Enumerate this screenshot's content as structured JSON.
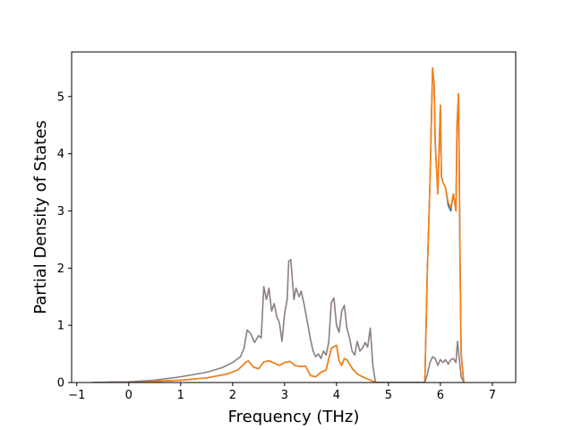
{
  "chart_data": {
    "type": "line",
    "title": "",
    "xlabel": "Frequency (THz)",
    "ylabel": "Partial Density of States",
    "xlim": [
      -1.1,
      7.45
    ],
    "ylim": [
      0,
      5.78
    ],
    "xticks": [
      -1,
      0,
      1,
      2,
      3,
      4,
      5,
      6,
      7
    ],
    "yticks": [
      0,
      1,
      2,
      3,
      4,
      5
    ],
    "grid": false,
    "legend": "none",
    "series": [
      {
        "color": "#1f77b4",
        "x": [
          -0.7,
          0.0,
          0.5,
          1.0,
          1.5,
          1.9,
          2.1,
          2.25,
          2.3,
          2.4,
          2.5,
          2.6,
          2.7,
          2.8,
          2.9,
          3.0,
          3.1,
          3.2,
          3.3,
          3.4,
          3.5,
          3.6,
          3.7,
          3.8,
          3.9,
          4.0,
          4.05,
          4.1,
          4.15,
          4.2,
          4.3,
          4.4,
          4.5,
          4.6,
          4.65,
          4.7,
          4.75,
          4.8,
          5.7,
          5.72,
          5.75,
          5.8,
          5.85,
          5.88,
          5.9,
          5.95,
          6.0,
          6.02,
          6.05,
          6.1,
          6.15,
          6.2,
          6.25,
          6.3,
          6.32,
          6.35,
          6.38,
          6.4,
          6.45
        ],
        "y": [
          0,
          0.01,
          0.02,
          0.04,
          0.08,
          0.15,
          0.22,
          0.35,
          0.38,
          0.27,
          0.24,
          0.36,
          0.38,
          0.34,
          0.3,
          0.35,
          0.37,
          0.3,
          0.28,
          0.29,
          0.12,
          0.1,
          0.18,
          0.22,
          0.6,
          0.65,
          0.38,
          0.3,
          0.42,
          0.4,
          0.25,
          0.15,
          0.1,
          0.06,
          0.04,
          0.02,
          0.01,
          0,
          0,
          0.8,
          2.0,
          3.5,
          5.5,
          5.2,
          4.2,
          3.3,
          4.85,
          3.6,
          3.5,
          3.4,
          3.1,
          3.0,
          3.3,
          3.0,
          4.5,
          5.05,
          2.0,
          0.5,
          0
        ],
        "line_width": 1.6
      },
      {
        "color": "#ff7f0e",
        "x": [
          -0.7,
          0.0,
          0.5,
          1.0,
          1.5,
          1.9,
          2.1,
          2.25,
          2.3,
          2.4,
          2.5,
          2.6,
          2.7,
          2.8,
          2.9,
          3.0,
          3.1,
          3.2,
          3.3,
          3.4,
          3.5,
          3.6,
          3.7,
          3.8,
          3.9,
          4.0,
          4.05,
          4.1,
          4.15,
          4.2,
          4.3,
          4.4,
          4.5,
          4.6,
          4.65,
          4.7,
          4.75,
          4.8,
          5.7,
          5.72,
          5.75,
          5.8,
          5.85,
          5.88,
          5.9,
          5.95,
          6.0,
          6.02,
          6.05,
          6.1,
          6.15,
          6.2,
          6.25,
          6.3,
          6.32,
          6.35,
          6.38,
          6.4,
          6.45
        ],
        "y": [
          0,
          0.01,
          0.02,
          0.04,
          0.08,
          0.15,
          0.22,
          0.35,
          0.38,
          0.27,
          0.24,
          0.36,
          0.38,
          0.34,
          0.3,
          0.35,
          0.37,
          0.3,
          0.28,
          0.29,
          0.12,
          0.1,
          0.18,
          0.22,
          0.6,
          0.65,
          0.38,
          0.3,
          0.42,
          0.4,
          0.25,
          0.15,
          0.1,
          0.06,
          0.04,
          0.02,
          0.01,
          0,
          0,
          0.8,
          2.0,
          3.5,
          5.5,
          5.2,
          4.2,
          3.3,
          4.85,
          3.6,
          3.5,
          3.4,
          3.15,
          3.05,
          3.3,
          3.0,
          4.5,
          5.05,
          2.0,
          0.5,
          0
        ],
        "line_width": 1.6
      },
      {
        "color": "#8c7f7f",
        "x": [
          -0.7,
          0.0,
          0.5,
          1.0,
          1.5,
          1.8,
          2.0,
          2.15,
          2.22,
          2.28,
          2.35,
          2.42,
          2.5,
          2.55,
          2.6,
          2.65,
          2.7,
          2.75,
          2.8,
          2.85,
          2.9,
          2.95,
          3.0,
          3.05,
          3.08,
          3.12,
          3.18,
          3.22,
          3.28,
          3.32,
          3.38,
          3.45,
          3.5,
          3.55,
          3.6,
          3.65,
          3.7,
          3.75,
          3.8,
          3.85,
          3.9,
          3.95,
          4.0,
          4.05,
          4.1,
          4.15,
          4.2,
          4.25,
          4.3,
          4.35,
          4.4,
          4.45,
          4.5,
          4.55,
          4.6,
          4.65,
          4.7,
          4.75,
          5.7,
          5.75,
          5.8,
          5.85,
          5.9,
          5.95,
          6.0,
          6.05,
          6.1,
          6.15,
          6.2,
          6.25,
          6.3,
          6.33,
          6.36,
          6.4,
          6.45
        ],
        "y": [
          0,
          0.01,
          0.04,
          0.1,
          0.18,
          0.26,
          0.35,
          0.45,
          0.6,
          0.92,
          0.85,
          0.7,
          0.82,
          0.78,
          1.68,
          1.45,
          1.65,
          1.25,
          1.38,
          1.15,
          1.05,
          0.72,
          1.2,
          1.45,
          2.12,
          2.15,
          1.45,
          1.65,
          1.5,
          1.6,
          1.35,
          1.0,
          0.75,
          0.55,
          0.45,
          0.5,
          0.42,
          0.55,
          0.48,
          0.7,
          1.4,
          1.48,
          1.0,
          0.88,
          1.25,
          1.35,
          0.95,
          0.78,
          0.55,
          0.48,
          0.72,
          0.55,
          0.6,
          0.7,
          0.62,
          0.95,
          0.3,
          0,
          0,
          0.15,
          0.35,
          0.45,
          0.42,
          0.3,
          0.4,
          0.35,
          0.4,
          0.32,
          0.4,
          0.42,
          0.35,
          0.72,
          0.45,
          0.1,
          0
        ],
        "line_width": 1.6
      }
    ]
  }
}
